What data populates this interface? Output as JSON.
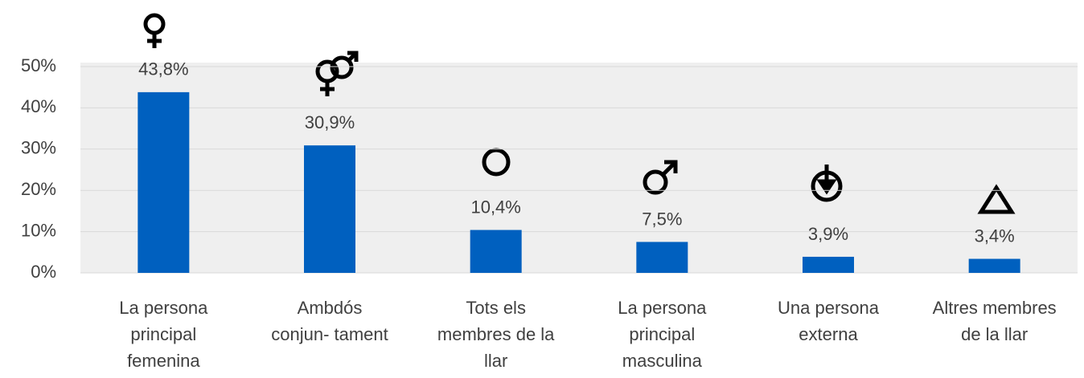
{
  "chart_data": {
    "type": "bar",
    "categories": [
      [
        "La persona",
        "principal",
        "femenina"
      ],
      [
        "Ambdós",
        "conjun- tament"
      ],
      [
        "Tots els",
        "membres de la",
        "llar"
      ],
      [
        "La persona",
        "principal",
        "masculina"
      ],
      [
        "Una persona",
        "externa"
      ],
      [
        "Altres membres",
        "de la llar"
      ]
    ],
    "values": [
      43.8,
      30.9,
      10.4,
      7.5,
      3.9,
      3.4
    ],
    "value_labels": [
      "43,8%",
      "30,9%",
      "10,4%",
      "7,5%",
      "3,9%",
      "3,4%"
    ],
    "color": "#0060bf",
    "ylim": [
      0,
      50
    ],
    "yticks": [
      {
        "value": 0,
        "label": "0%"
      },
      {
        "value": 10,
        "label": "10%"
      },
      {
        "value": 20,
        "label": "20%"
      },
      {
        "value": 30,
        "label": "30%"
      },
      {
        "value": 40,
        "label": "40%"
      },
      {
        "value": 50,
        "label": "50%"
      }
    ],
    "grid": true
  }
}
